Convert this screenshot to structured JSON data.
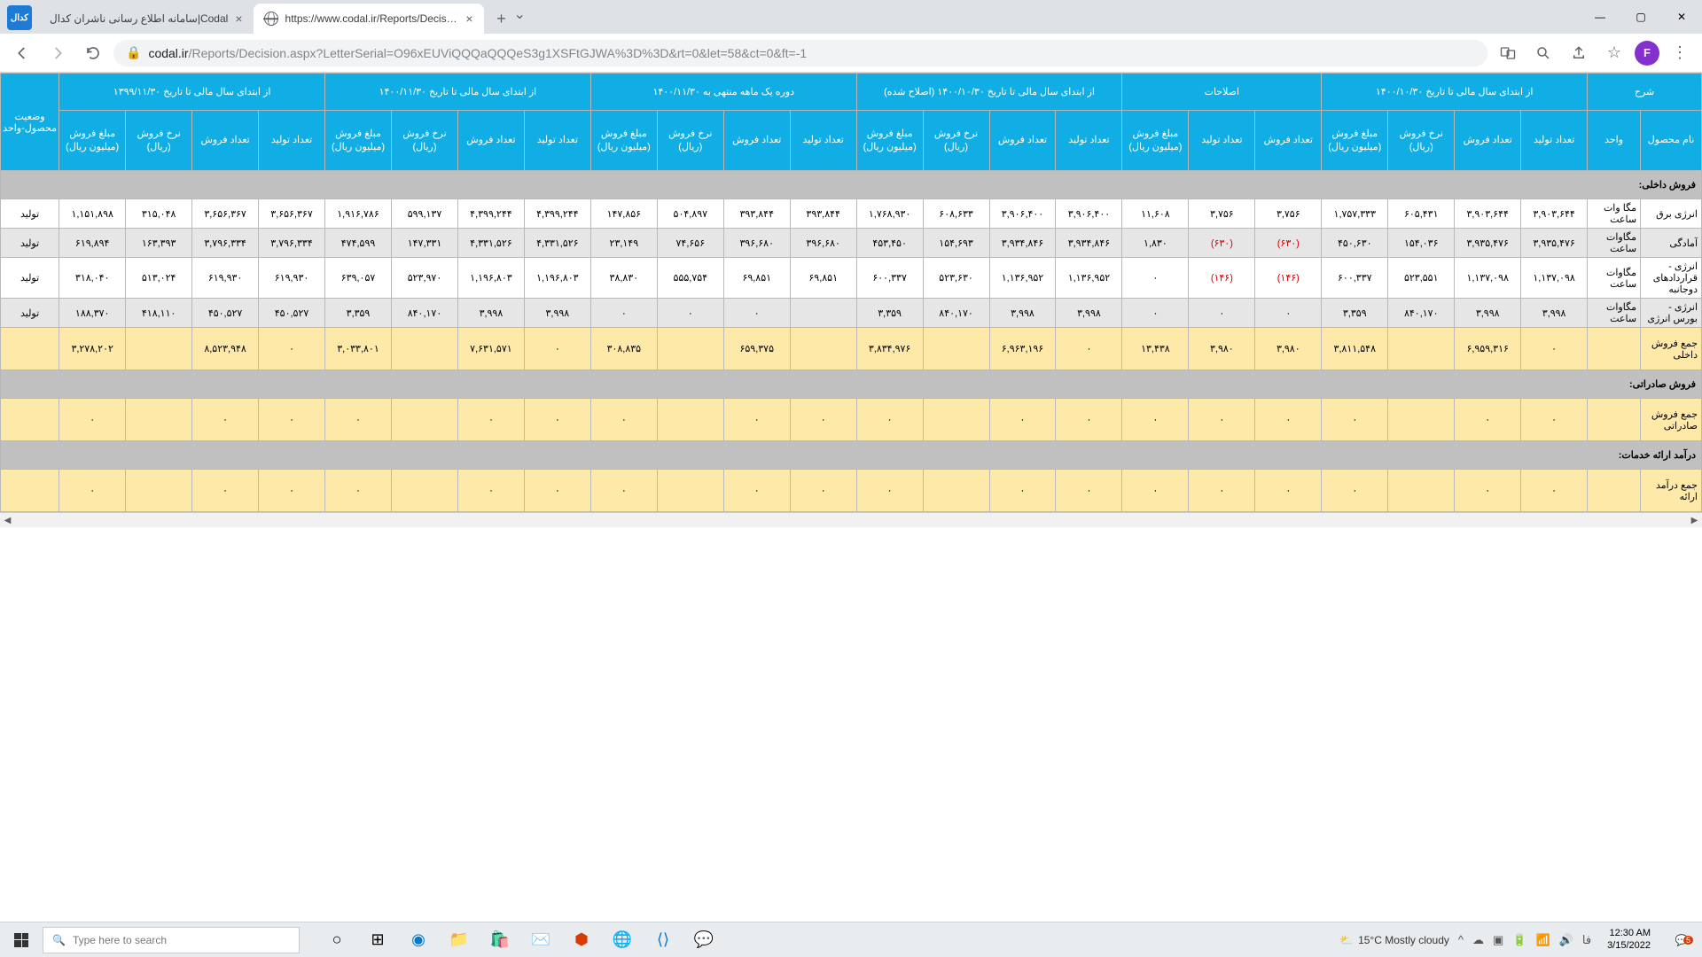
{
  "browser": {
    "tab1_title": "سامانه اطلاع رسانی ناشران کدال|Codal",
    "tab2_title": "https://www.codal.ir/Reports/Decision.aspx?",
    "url_host": "codal.ir",
    "url_path": "/Reports/Decision.aspx?LetterSerial=O96xEUViQQQaQQQeS3g1XSFtGJWA%3D%3D&rt=0&let=58&ct=0&ft=-1",
    "profile_letter": "F"
  },
  "table": {
    "groups": {
      "g1": "شرح",
      "g2": "از ابتدای سال مالی تا تاریخ\n۱۴۰۰/۱۰/۳۰",
      "g3": "اصلاحات",
      "g4": "از ابتدای سال مالی تا تاریخ\n۱۴۰۰/۱۰/۳۰ (اصلاح شده)",
      "g5": "دوره یک ماهه منتهی به\n۱۴۰۰/۱۱/۳۰",
      "g6": "از ابتدای سال مالی تا تاریخ\n۱۴۰۰/۱۱/۳۰",
      "g7": "از ابتدای سال مالی تا تاریخ\n۱۳۹۹/۱۱/۳۰",
      "g8": "وضعیت محصول-واحد"
    },
    "sub": {
      "name": "نام محصول",
      "unit": "واحد",
      "tp": "تعداد تولید",
      "ts": "تعداد فروش",
      "rate": "نرخ فروش (ریال)",
      "amt": "مبلغ فروش (میلیون ریال)"
    },
    "sections": {
      "dom_sales": "فروش داخلی:",
      "sum_dom": "جمع فروش داخلی",
      "exp_sales": "فروش صادراتی:",
      "sum_exp": "جمع فروش صادراتی",
      "svc_inc": "درآمد ارائه خدمات:",
      "sum_svc": "جمع درآمد ارائه"
    },
    "rows": [
      {
        "name": "انرژی برق",
        "unit": "مگا وات ساعت",
        "c": [
          "۳,۹۰۳,۶۴۴",
          "۳,۹۰۳,۶۴۴",
          "۶۰۵,۴۳۱",
          "۱,۷۵۷,۳۳۳",
          "۳,۷۵۶",
          "۳,۷۵۶",
          "۱۱,۶۰۸",
          "۳,۹۰۶,۴۰۰",
          "۳,۹۰۶,۴۰۰",
          "۶۰۸,۶۳۳",
          "۱,۷۶۸,۹۳۰",
          "۳۹۳,۸۴۴",
          "۳۹۳,۸۴۴",
          "۵۰۴,۸۹۷",
          "۱۴۷,۸۵۶",
          "۴,۳۹۹,۲۴۴",
          "۴,۳۹۹,۲۴۴",
          "۵۹۹,۱۳۷",
          "۱,۹۱۶,۷۸۶",
          "۳,۶۵۶,۳۶۷",
          "۳,۶۵۶,۳۶۷",
          "۳۱۵,۰۴۸",
          "۱,۱۵۱,۸۹۸",
          "تولید"
        ]
      },
      {
        "name": "آمادگی",
        "unit": "مگاوات ساعت",
        "c": [
          "۳,۹۳۵,۴۷۶",
          "۳,۹۳۵,۴۷۶",
          "۱۵۴,۰۳۶",
          "۴۵۰,۶۳۰",
          "(۶۳۰)",
          "(۶۳۰)",
          "۱,۸۳۰",
          "۳,۹۳۴,۸۴۶",
          "۳,۹۳۴,۸۴۶",
          "۱۵۴,۶۹۳",
          "۴۵۳,۴۵۰",
          "۳۹۶,۶۸۰",
          "۳۹۶,۶۸۰",
          "۷۴,۶۵۶",
          "۲۳,۱۴۹",
          "۴,۳۳۱,۵۲۶",
          "۴,۳۳۱,۵۲۶",
          "۱۴۷,۳۳۱",
          "۴۷۴,۵۹۹",
          "۳,۷۹۶,۳۳۴",
          "۳,۷۹۶,۳۳۴",
          "۱۶۳,۳۹۳",
          "۶۱۹,۸۹۴",
          "تولید"
        ]
      },
      {
        "name": "انرژی - قراردادهای دوجانبه",
        "unit": "مگاوات ساعت",
        "c": [
          "۱,۱۳۷,۰۹۸",
          "۱,۱۳۷,۰۹۸",
          "۵۲۳,۵۵۱",
          "۶۰۰,۳۳۷",
          "(۱۴۶)",
          "(۱۴۶)",
          "۰",
          "۱,۱۳۶,۹۵۲",
          "۱,۱۳۶,۹۵۲",
          "۵۲۳,۶۳۰",
          "۶۰۰,۳۳۷",
          "۶۹,۸۵۱",
          "۶۹,۸۵۱",
          "۵۵۵,۷۵۴",
          "۳۸,۸۳۰",
          "۱,۱۹۶,۸۰۳",
          "۱,۱۹۶,۸۰۳",
          "۵۲۳,۹۷۰",
          "۶۳۹,۰۵۷",
          "۶۱۹,۹۳۰",
          "۶۱۹,۹۳۰",
          "۵۱۳,۰۲۴",
          "۳۱۸,۰۴۰",
          "تولید"
        ]
      },
      {
        "name": "انرژی - بورس انرژی",
        "unit": "مگاوات ساعت",
        "c": [
          "۳,۹۹۸",
          "۳,۹۹۸",
          "۸۴۰,۱۷۰",
          "۳,۳۵۹",
          "۰",
          "۰",
          "۰",
          "۳,۹۹۸",
          "۳,۹۹۸",
          "۸۴۰,۱۷۰",
          "۳,۳۵۹",
          "",
          "۰",
          "۰",
          "۰",
          "۳,۹۹۸",
          "۳,۹۹۸",
          "۸۴۰,۱۷۰",
          "۳,۳۵۹",
          "۴۵۰,۵۲۷",
          "۴۵۰,۵۲۷",
          "۴۱۸,۱۱۰",
          "۱۸۸,۳۷۰",
          "تولید"
        ]
      }
    ],
    "sum_dom_row": [
      "۰",
      "۶,۹۵۹,۳۱۶",
      "",
      "۳,۸۱۱,۵۴۸",
      "۳,۹۸۰",
      "۳,۹۸۰",
      "۱۳,۴۳۸",
      "۰",
      "۶,۹۶۳,۱۹۶",
      "",
      "۳,۸۳۴,۹۷۶",
      "",
      "۶۵۹,۳۷۵",
      "",
      "۳۰۸,۸۳۵",
      "۰",
      "۷,۶۳۱,۵۷۱",
      "",
      "۳,۰۳۳,۸۰۱",
      "۰",
      "۸,۵۲۳,۹۴۸",
      "",
      "۳,۲۷۸,۲۰۲",
      ""
    ],
    "dots_row": [
      "۰",
      "۰",
      "",
      "۰",
      "۰",
      "۰",
      "۰",
      "۰",
      "۰",
      "",
      "۰",
      "۰",
      "۰",
      "",
      "۰",
      "۰",
      "۰",
      "",
      "۰",
      "۰",
      "۰",
      "",
      "۰",
      ""
    ]
  },
  "taskbar": {
    "search_placeholder": "Type here to search",
    "weather": "15°C  Mostly cloudy",
    "lang": "فا",
    "time": "12:30 AM",
    "date": "3/15/2022",
    "notif": "5"
  }
}
